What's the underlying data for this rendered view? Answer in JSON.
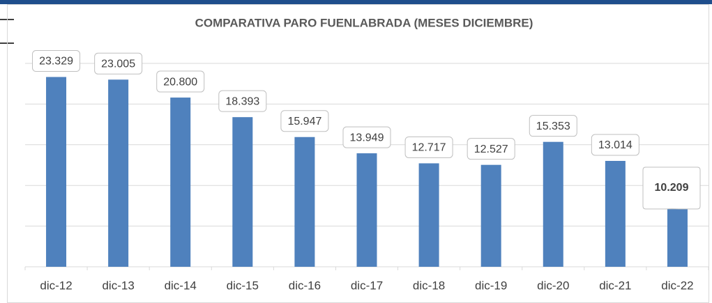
{
  "chart_data": {
    "type": "bar",
    "title": "COMPARATIVA PARO FUENLABRADA (MESES DICIEMBRE)",
    "categories": [
      "dic-12",
      "dic-13",
      "dic-14",
      "dic-15",
      "dic-16",
      "dic-17",
      "dic-18",
      "dic-19",
      "dic-20",
      "dic-21",
      "dic-22"
    ],
    "values": [
      23329,
      23005,
      20800,
      18393,
      15947,
      13949,
      12717,
      12527,
      15353,
      13014,
      10209
    ],
    "value_labels": [
      "23.329",
      "23.005",
      "20.800",
      "18.393",
      "15.947",
      "13.949",
      "12.717",
      "12.527",
      "15.353",
      "13.014",
      "10.209"
    ],
    "color": "#4f81bd",
    "ylim": [
      0,
      25000
    ],
    "yticks": [
      0,
      5000,
      10000,
      15000,
      20000,
      25000
    ],
    "grid": true
  }
}
